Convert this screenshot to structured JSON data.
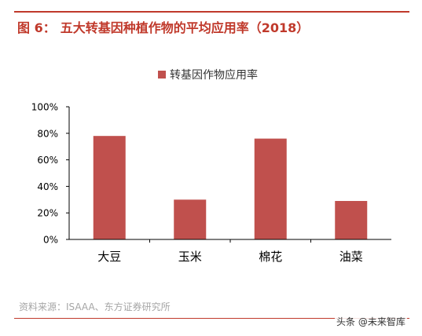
{
  "figure": {
    "label": "图 6：",
    "title": "五大转基因种植作物的平均应用率（2018）"
  },
  "source": "资料来源：ISAAA、东方证券研究所",
  "watermark": "头条 @未来智库",
  "colors": {
    "accent": "#c0392b",
    "bar": "#c0504d",
    "axis": "#000000"
  },
  "chart_data": {
    "type": "bar",
    "categories": [
      "大豆",
      "玉米",
      "棉花",
      "油菜"
    ],
    "series": [
      {
        "name": "转基因作物应用率",
        "values": [
          78,
          30,
          76,
          29
        ]
      }
    ],
    "yticks": [
      "0%",
      "20%",
      "40%",
      "60%",
      "80%",
      "100%"
    ],
    "ylim": [
      0,
      100
    ],
    "legend": "top-center",
    "grid": false
  }
}
